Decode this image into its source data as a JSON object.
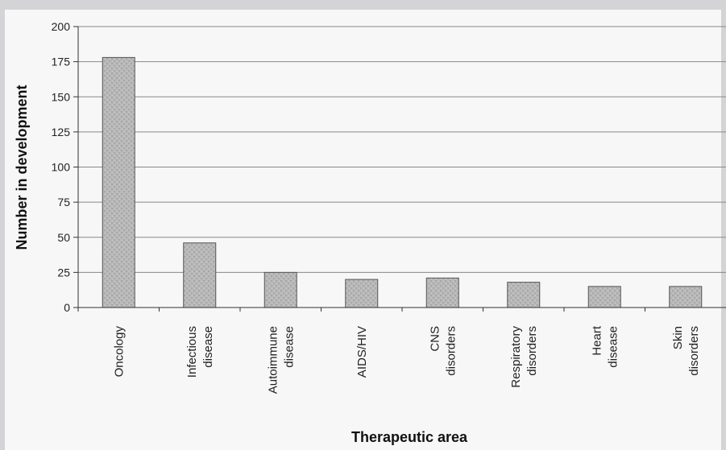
{
  "chart_data": {
    "type": "bar",
    "xlabel": "Therapeutic area",
    "ylabel": "Number in development",
    "ylim": [
      0,
      200
    ],
    "yticks": [
      0,
      25,
      50,
      75,
      100,
      125,
      150,
      175,
      200
    ],
    "grid": true,
    "categories": [
      [
        "Oncology"
      ],
      [
        "Infectious",
        "disease"
      ],
      [
        "Autoimmune",
        "disease"
      ],
      [
        "AIDS/HIV"
      ],
      [
        "CNS",
        "disorders"
      ],
      [
        "Respiratory",
        "disorders"
      ],
      [
        "Heart",
        "disease"
      ],
      [
        "Skin",
        "disorders"
      ]
    ],
    "values": [
      178,
      46,
      25,
      20,
      21,
      18,
      15,
      15
    ],
    "colors": {
      "bar_fill": "#b8b8b8",
      "bar_stroke": "#555555",
      "gridline": "#888888"
    }
  }
}
